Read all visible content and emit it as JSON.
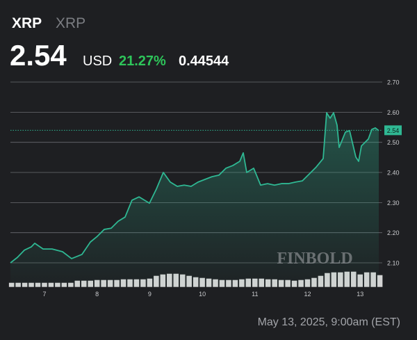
{
  "chart_data": {
    "type": "line",
    "symbol": "XRP",
    "name": "XRP",
    "price": 2.54,
    "currency": "USD",
    "change_percent": "21.27%",
    "change": 0.44544,
    "watermark": "FINBOLD",
    "timestamp": "May 13, 2025, 9:00am (EST)",
    "color": "#2fb893",
    "change_color": "#2ec55a",
    "x": [
      6.353,
      6.485,
      6.617,
      6.749,
      6.815,
      6.974,
      7.145,
      7.343,
      7.515,
      7.713,
      7.872,
      8.004,
      8.136,
      8.268,
      8.4,
      8.532,
      8.664,
      8.797,
      8.995,
      9.127,
      9.259,
      9.391,
      9.523,
      9.655,
      9.787,
      9.919,
      10.051,
      10.184,
      10.316,
      10.448,
      10.58,
      10.712,
      10.778,
      10.844,
      10.976,
      11.108,
      11.24,
      11.372,
      11.505,
      11.637,
      11.769,
      11.901,
      12.033,
      12.165,
      12.297,
      12.363,
      12.429,
      12.495,
      12.561,
      12.601,
      12.72,
      12.799,
      12.918,
      12.971,
      13.024,
      13.156,
      13.222,
      13.288,
      13.354
    ],
    "values": [
      2.1,
      2.118,
      2.142,
      2.153,
      2.165,
      2.146,
      2.146,
      2.137,
      2.114,
      2.128,
      2.169,
      2.188,
      2.211,
      2.215,
      2.238,
      2.252,
      2.308,
      2.319,
      2.298,
      2.345,
      2.4,
      2.368,
      2.354,
      2.358,
      2.354,
      2.368,
      2.377,
      2.386,
      2.391,
      2.414,
      2.423,
      2.437,
      2.465,
      2.4,
      2.414,
      2.358,
      2.363,
      2.358,
      2.363,
      2.363,
      2.368,
      2.372,
      2.395,
      2.418,
      2.446,
      2.598,
      2.58,
      2.598,
      2.557,
      2.483,
      2.534,
      2.539,
      2.451,
      2.437,
      2.488,
      2.511,
      2.543,
      2.548,
      2.539
    ],
    "volume": {
      "color": "#d4d4d4",
      "vlim": [
        0,
        60
      ],
      "x": [
        6.375,
        6.5,
        6.625,
        6.75,
        6.875,
        7.0,
        7.125,
        7.25,
        7.375,
        7.5,
        7.625,
        7.75,
        7.875,
        8.0,
        8.125,
        8.25,
        8.375,
        8.5,
        8.625,
        8.75,
        8.875,
        9.0,
        9.125,
        9.25,
        9.375,
        9.5,
        9.625,
        9.75,
        9.875,
        10.0,
        10.125,
        10.25,
        10.375,
        10.5,
        10.625,
        10.75,
        10.875,
        11.0,
        11.125,
        11.25,
        11.375,
        11.5,
        11.625,
        11.75,
        11.875,
        12.0,
        12.125,
        12.25,
        12.375,
        12.5,
        12.625,
        12.75,
        12.875,
        13.0,
        13.125,
        13.25,
        13.375
      ],
      "values": [
        6,
        6,
        6,
        6,
        6,
        6,
        6,
        6,
        6,
        6,
        9,
        9,
        9,
        10,
        10,
        10,
        10,
        11,
        11,
        11,
        11,
        12,
        16,
        18,
        19,
        19,
        18,
        16,
        14,
        13,
        12,
        11,
        10,
        10,
        10,
        11,
        12,
        12,
        12,
        11,
        11,
        10,
        10,
        9,
        10,
        11,
        13,
        16,
        20,
        21,
        21,
        22,
        22,
        18,
        21,
        21,
        17
      ]
    },
    "xlim": [
      6.353,
      13.42
    ],
    "xticks": [
      7,
      8,
      9,
      10,
      11,
      12,
      13
    ],
    "ylim": [
      2.02,
      2.74
    ],
    "yticks": [
      {
        "value": 2.1,
        "label": "2.10"
      },
      {
        "value": 2.2,
        "label": "2.20"
      },
      {
        "value": 2.3,
        "label": "2.30"
      },
      {
        "value": 2.4,
        "label": "2.40"
      },
      {
        "value": 2.5,
        "label": "2.50"
      },
      {
        "value": 2.6,
        "label": "2.60"
      },
      {
        "value": 2.7,
        "label": "2.70"
      }
    ],
    "grid": true
  }
}
